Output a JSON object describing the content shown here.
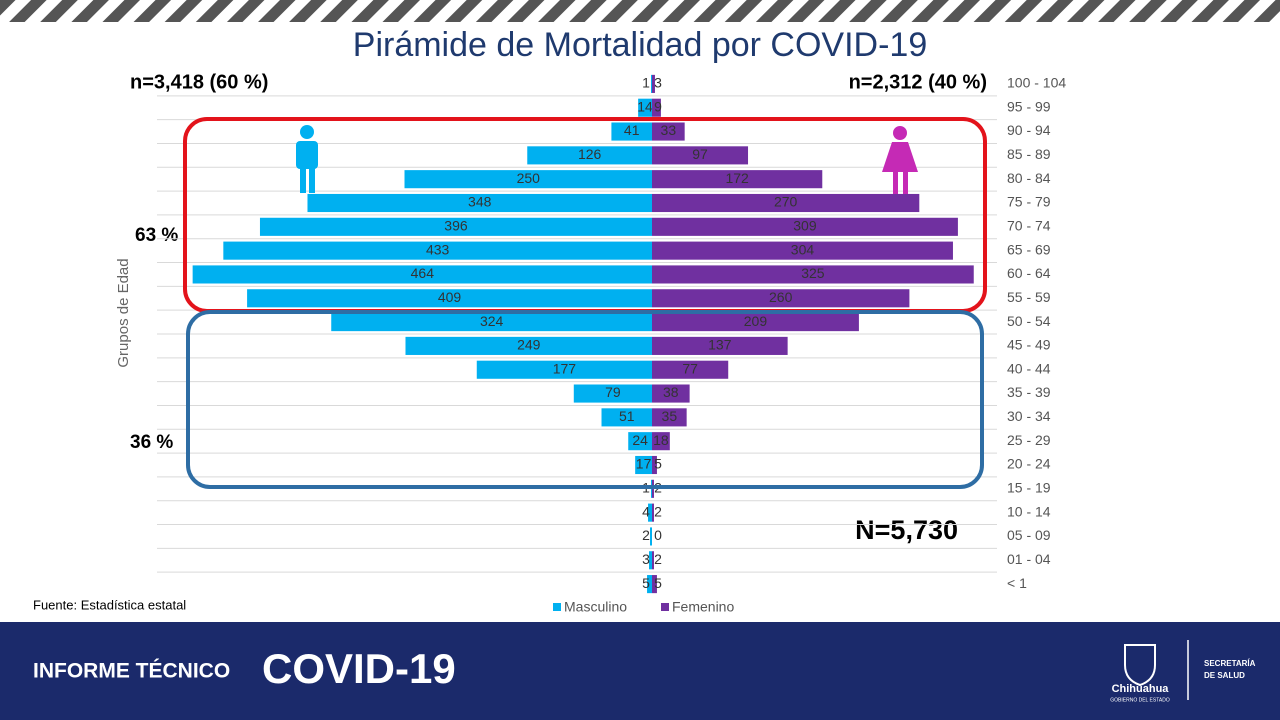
{
  "chart_data": {
    "type": "pyramid",
    "title": "Pirámide de Mortalidad por COVID-19",
    "y_axis_label": "Grupos de Edad",
    "categories": [
      "100 - 104",
      "95 - 99",
      "90 - 94",
      "85 - 89",
      "80 - 84",
      "75 - 79",
      "70 - 74",
      "65 - 69",
      "60 - 64",
      "55 - 59",
      "50 - 54",
      "45 - 49",
      "40 - 44",
      "35 - 39",
      "30 - 34",
      "25 - 29",
      "20 - 24",
      "15 - 19",
      "10 - 14",
      "05 - 09",
      "01 - 04",
      "< 1"
    ],
    "series": [
      {
        "name": "Masculino",
        "color": "#00b0f0",
        "values": [
          1,
          14,
          41,
          126,
          250,
          348,
          396,
          433,
          464,
          409,
          324,
          249,
          177,
          79,
          51,
          24,
          17,
          1,
          4,
          2,
          3,
          5
        ]
      },
      {
        "name": "Femenino",
        "color": "#7030a0",
        "values": [
          3,
          9,
          33,
          97,
          172,
          270,
          309,
          304,
          325,
          260,
          209,
          137,
          77,
          38,
          35,
          18,
          5,
          2,
          2,
          0,
          2,
          5
        ]
      }
    ],
    "male_total": "n=3,418 (60 %)",
    "female_total": "n=2,312 (40 %)",
    "older_share": "63 %",
    "younger_share": "36 %",
    "grand_total": "N=5,730",
    "source": "Fuente:  Estadística estatal",
    "grid": true
  },
  "footer": {
    "report": "INFORME TÉCNICO",
    "topic": "COVID-19",
    "state": "Chihuahua",
    "government": "GOBIERNO DEL ESTADO",
    "ministry_line1": "SECRETARÍA",
    "ministry_line2": "DE SALUD"
  }
}
